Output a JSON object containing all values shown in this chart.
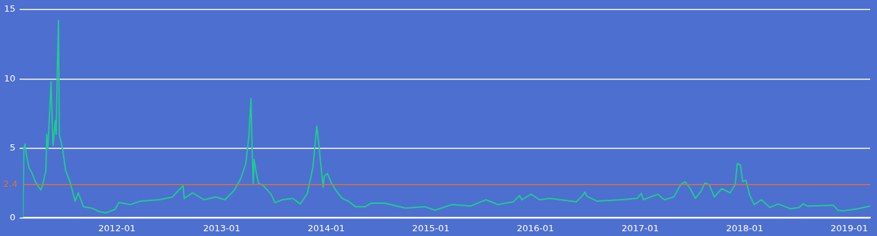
{
  "chart_data": {
    "type": "line",
    "x": [
      "2011-02-07",
      "2011-02-10",
      "2011-02-14",
      "2011-02-21",
      "2011-02-28",
      "2011-03-11",
      "2011-03-22",
      "2011-04-10",
      "2011-04-17",
      "2011-04-28",
      "2011-05-01",
      "2011-05-05",
      "2011-05-16",
      "2011-05-20",
      "2011-05-23",
      "2011-05-31",
      "2011-06-03",
      "2011-06-07",
      "2011-06-11",
      "2011-06-14",
      "2011-06-25",
      "2011-07-06",
      "2011-07-21",
      "2011-08-08",
      "2011-08-19",
      "2011-09-06",
      "2011-10-05",
      "2011-10-31",
      "2011-11-22",
      "2011-12-25",
      "2012-01-08",
      "2012-02-17",
      "2012-03-22",
      "2012-05-27",
      "2012-07-13",
      "2012-08-04",
      "2012-08-19",
      "2012-08-23",
      "2012-09-21",
      "2012-10-31",
      "2012-12-10",
      "2013-01-12",
      "2013-02-14",
      "2013-03-08",
      "2013-03-26",
      "2013-04-06",
      "2013-04-13",
      "2013-04-17",
      "2013-04-21",
      "2013-04-24",
      "2013-05-01",
      "2013-05-09",
      "2013-05-27",
      "2013-06-22",
      "2013-07-06",
      "2013-08-01",
      "2013-09-06",
      "2013-10-02",
      "2013-10-27",
      "2013-11-15",
      "2013-11-22",
      "2013-11-29",
      "2013-12-06",
      "2013-12-14",
      "2013-12-21",
      "2013-12-25",
      "2014-01-05",
      "2014-01-19",
      "2014-02-03",
      "2014-02-25",
      "2014-03-19",
      "2014-04-13",
      "2014-05-16",
      "2014-06-07",
      "2014-07-24",
      "2014-10-05",
      "2014-12-10",
      "2015-01-16",
      "2015-03-15",
      "2015-05-20",
      "2015-07-13",
      "2015-08-23",
      "2015-10-16",
      "2015-11-07",
      "2015-11-15",
      "2015-12-17",
      "2016-01-16",
      "2016-02-21",
      "2016-05-23",
      "2016-06-14",
      "2016-06-22",
      "2016-06-29",
      "2016-08-04",
      "2016-10-27",
      "2016-12-21",
      "2017-01-05",
      "2017-01-12",
      "2017-03-04",
      "2017-03-26",
      "2017-04-28",
      "2017-05-23",
      "2017-06-07",
      "2017-06-25",
      "2017-07-13",
      "2017-08-01",
      "2017-08-15",
      "2017-08-30",
      "2017-09-17",
      "2017-10-13",
      "2017-11-11",
      "2017-11-29",
      "2017-12-06",
      "2017-12-17",
      "2017-12-25",
      "2018-01-05",
      "2018-01-19",
      "2018-02-03",
      "2018-02-28",
      "2018-03-30",
      "2018-04-28",
      "2018-06-11",
      "2018-07-10",
      "2018-07-24",
      "2018-08-08",
      "2018-11-07",
      "2018-11-22",
      "2018-12-10",
      "2019-01-30",
      "2019-03-15"
    ],
    "series": [
      {
        "color": "#1ecb92",
        "values": [
          0,
          5.0,
          5.3,
          4.3,
          3.6,
          3.2,
          2.6,
          2.0,
          2.4,
          3.4,
          6.0,
          5.0,
          9.8,
          7.0,
          5.2,
          7.0,
          6.0,
          10.9,
          14.2,
          6.0,
          5.0,
          3.4,
          2.6,
          1.2,
          1.8,
          0.8,
          0.7,
          0.45,
          0.35,
          0.6,
          1.1,
          0.95,
          1.2,
          1.3,
          1.5,
          2.0,
          2.3,
          1.4,
          1.8,
          1.3,
          1.5,
          1.3,
          2.0,
          2.8,
          3.9,
          5.9,
          8.6,
          5.0,
          2.4,
          4.2,
          3.3,
          2.5,
          2.3,
          1.7,
          1.1,
          1.3,
          1.4,
          1.0,
          1.75,
          3.6,
          5.1,
          6.6,
          5.3,
          3.6,
          2.2,
          3.0,
          3.2,
          2.5,
          2.0,
          1.4,
          1.2,
          0.8,
          0.8,
          1.05,
          1.05,
          0.7,
          0.8,
          0.55,
          0.95,
          0.85,
          1.3,
          0.95,
          1.15,
          1.6,
          1.3,
          1.7,
          1.3,
          1.4,
          1.15,
          1.6,
          1.85,
          1.55,
          1.2,
          1.3,
          1.4,
          1.75,
          1.3,
          1.7,
          1.3,
          1.5,
          2.4,
          2.6,
          2.1,
          1.4,
          1.9,
          2.5,
          2.4,
          1.5,
          2.1,
          1.8,
          2.4,
          3.9,
          3.8,
          2.6,
          2.7,
          1.6,
          0.95,
          1.3,
          0.75,
          1.0,
          0.65,
          0.75,
          1.0,
          0.85,
          0.9,
          0.55,
          0.5,
          0.65,
          0.85
        ]
      }
    ],
    "xlim": [
      "2011-02-07",
      "2019-03-15"
    ],
    "xticks": [
      "2012-01",
      "2013-01",
      "2014-01",
      "2015-01",
      "2016-01",
      "2017-01",
      "2018-01",
      "2019-01"
    ],
    "ylim": [
      0,
      15
    ],
    "yticks": [
      0,
      5,
      10,
      15
    ],
    "ref_lines": [
      {
        "axis": "y",
        "value": 2.4,
        "label": "2.4",
        "color": "#e0703a"
      }
    ],
    "grid": "y",
    "legend": false,
    "marker": "none",
    "line_style": "solid"
  }
}
